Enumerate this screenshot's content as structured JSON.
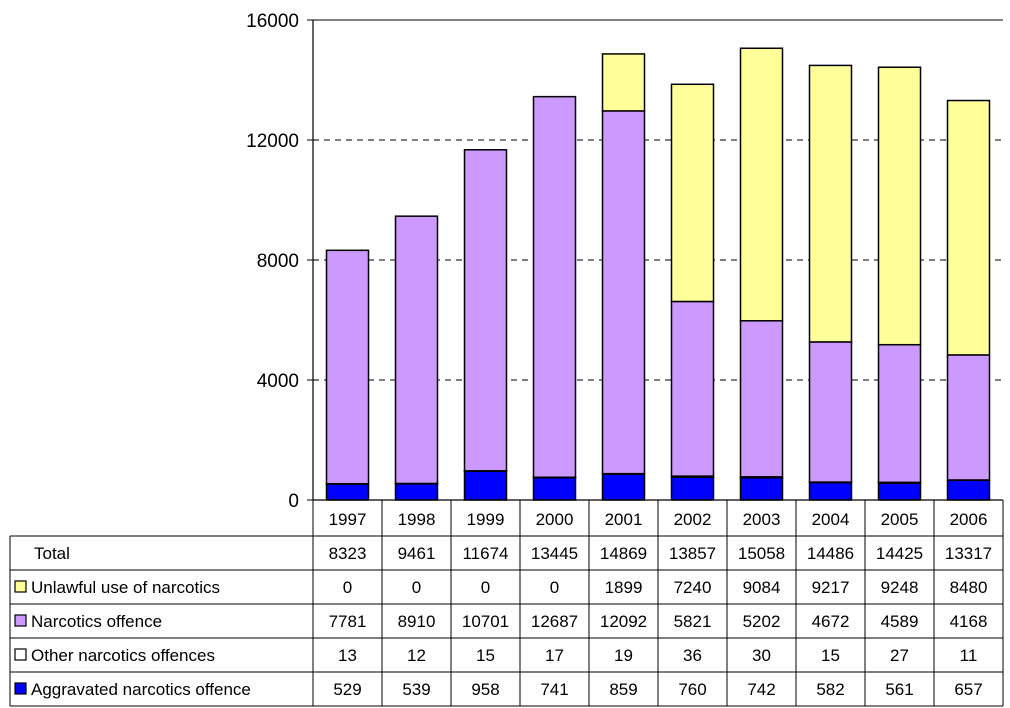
{
  "chart_data": {
    "type": "bar",
    "stacked": true,
    "categories": [
      "1997",
      "1998",
      "1999",
      "2000",
      "2001",
      "2002",
      "2003",
      "2004",
      "2005",
      "2006"
    ],
    "yticks": [
      "0",
      "4000",
      "8000",
      "12000",
      "16000"
    ],
    "ylim": [
      0,
      16000
    ],
    "grid": true,
    "legend": "data-table",
    "series": [
      {
        "name": "Aggravated narcotics offence",
        "color": "#0000ff",
        "values": [
          529,
          539,
          958,
          741,
          859,
          760,
          742,
          582,
          561,
          657
        ]
      },
      {
        "name": "Other narcotics offences",
        "color": "#ffffff",
        "values": [
          13,
          12,
          15,
          17,
          19,
          36,
          30,
          15,
          27,
          11
        ]
      },
      {
        "name": "Narcotics offence",
        "color": "#cc99ff",
        "values": [
          7781,
          8910,
          10701,
          12687,
          12092,
          5821,
          5202,
          4672,
          4589,
          4168
        ]
      },
      {
        "name": "Unlawful use of narcotics",
        "color": "#ffff99",
        "values": [
          0,
          0,
          0,
          0,
          1899,
          7240,
          9084,
          9217,
          9248,
          8480
        ]
      }
    ],
    "total": {
      "name": "Total",
      "values": [
        8323,
        9461,
        11674,
        13445,
        14869,
        13857,
        15058,
        14486,
        14425,
        13317
      ]
    },
    "table_row_order": [
      "total",
      "Unlawful use of narcotics",
      "Narcotics offence",
      "Other narcotics offences",
      "Aggravated narcotics offence"
    ]
  }
}
